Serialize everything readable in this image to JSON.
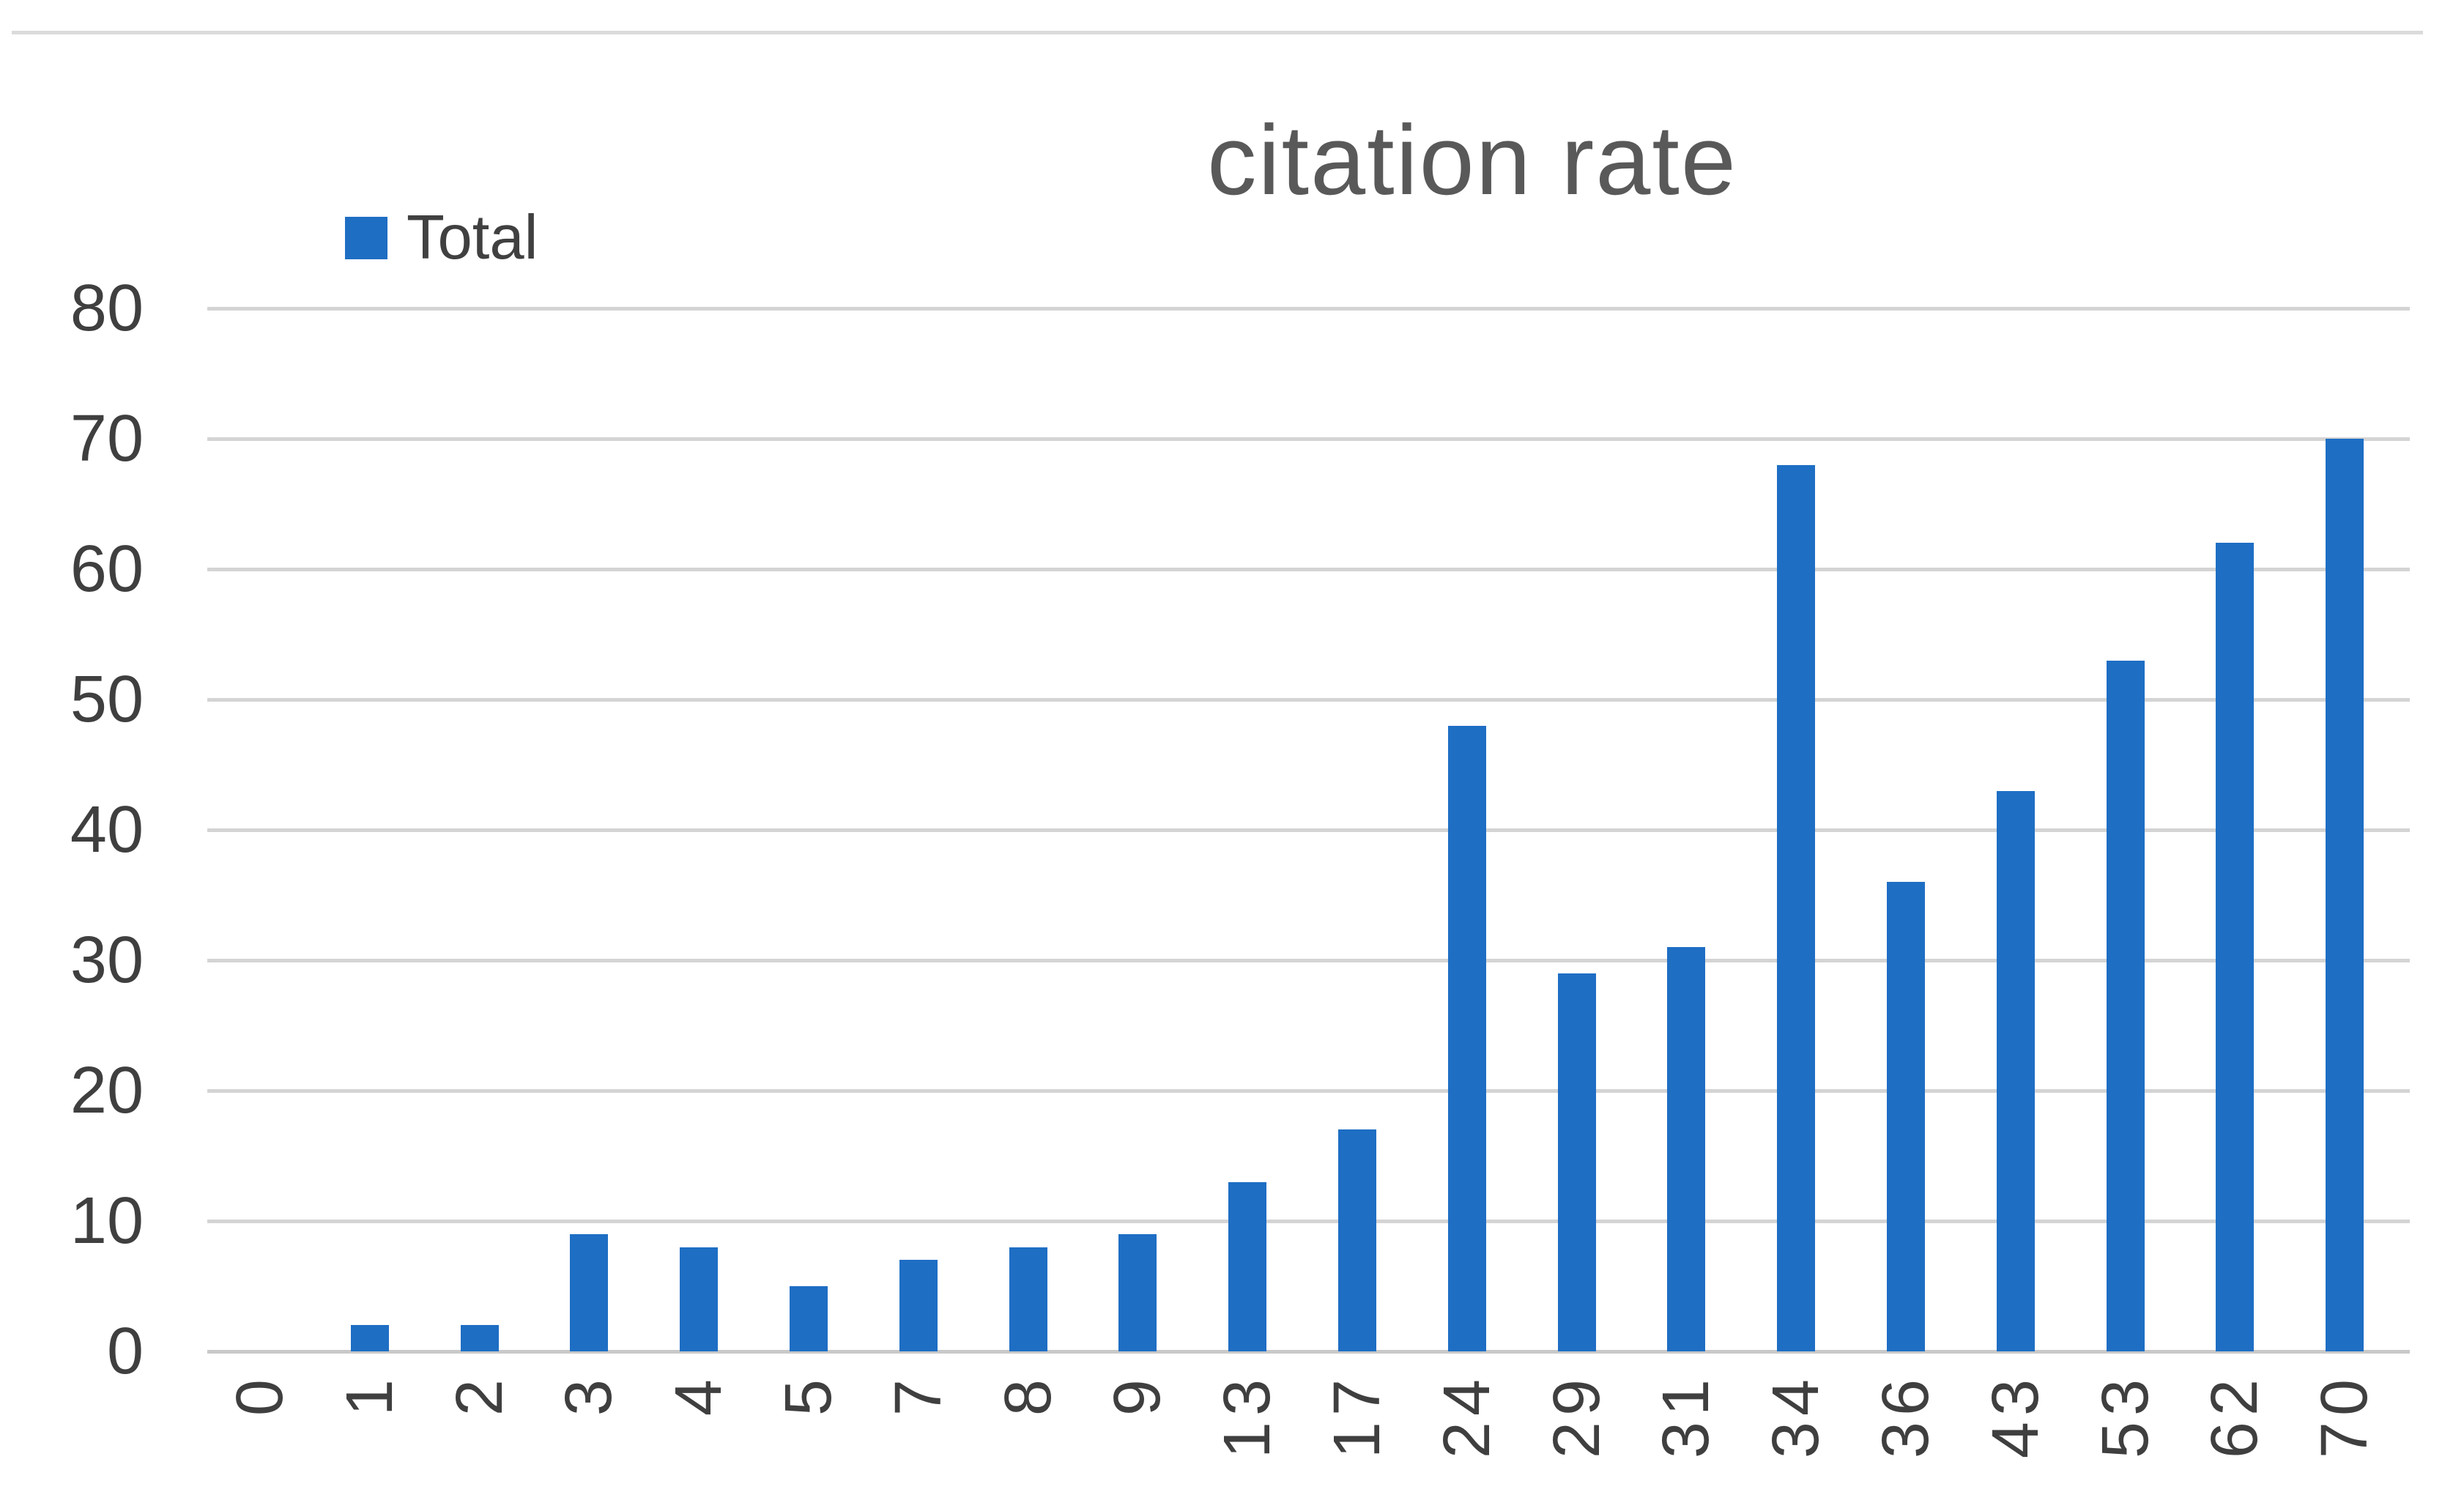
{
  "page": {
    "background": "#ffffff",
    "sheet_gridline_color": "#DBDBDB"
  },
  "chart_data": {
    "type": "bar",
    "title": "citation rate",
    "legend_label": "Total",
    "legend_position": "top-left",
    "categories": [
      "0",
      "1",
      "2",
      "3",
      "4",
      "5",
      "7",
      "8",
      "9",
      "13",
      "17",
      "24",
      "29",
      "31",
      "34",
      "36",
      "43",
      "53",
      "62",
      "70"
    ],
    "series": [
      {
        "name": "Total",
        "values": [
          0,
          2,
          2,
          9,
          8,
          5,
          7,
          8,
          9,
          13,
          17,
          48,
          29,
          31,
          68,
          36,
          43,
          53,
          62,
          70
        ]
      }
    ],
    "xlabel": "",
    "ylabel": "",
    "ylim": [
      0,
      80
    ],
    "yticks": [
      0,
      10,
      20,
      30,
      40,
      50,
      60,
      70,
      80
    ],
    "grid": true,
    "x_tick_rotation_degrees": 90,
    "colors": {
      "bar": "#1E6EC4",
      "gridline": "#D4D4D4",
      "axis_line": "#C9C9C9",
      "title_text": "#595959",
      "tick_text": "#3F3F3F",
      "legend_text": "#404040"
    }
  }
}
